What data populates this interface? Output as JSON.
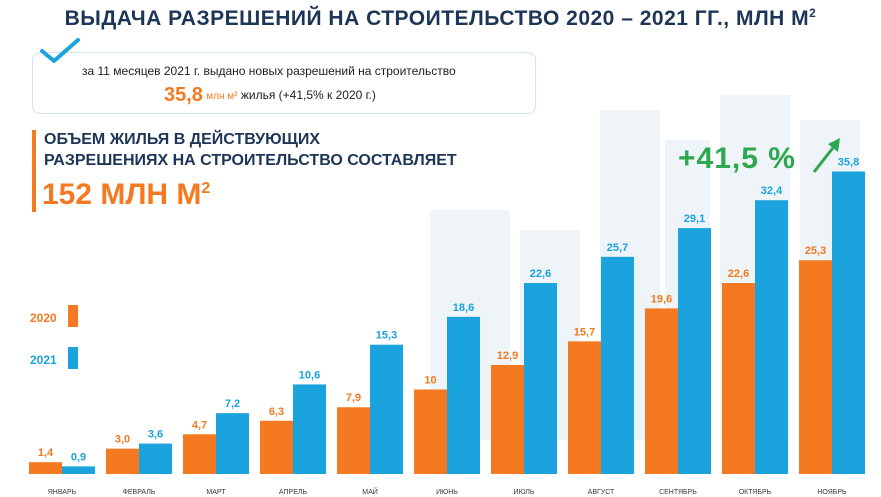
{
  "title": "ВЫДАЧА РАЗРЕШЕНИЙ НА СТРОИТЕЛЬСТВО 2020 – 2021 ГГ., МЛН М",
  "title_sup": "2",
  "info": {
    "line1": "за 11 месяцев 2021 г. выдано новых разрешений на строительство",
    "value": "35,8",
    "unit": "млн м²",
    "line2_rest": "жилья (+41,5% к 2020 г.)"
  },
  "subtitle_line1": "ОБЪЕМ ЖИЛЬЯ В ДЕЙСТВУЮЩИХ",
  "subtitle_line2": "РАЗРЕШЕНИЯХ НА СТРОИТЕЛЬСТВО СОСТАВЛЯЕТ",
  "volume": "152 МЛН М",
  "volume_sup": "2",
  "growth_label": "+41,5 %",
  "colors": {
    "orange": "#f47920",
    "blue": "#1aa3dc",
    "navy": "#1d3557",
    "green": "#2da84f"
  },
  "icons": [
    "check-icon",
    "growth-arrow-icon"
  ],
  "chart_data": {
    "type": "bar",
    "categories": [
      "ЯНВАРЬ",
      "ФЕВРАЛЬ",
      "МАРТ",
      "АПРЕЛЬ",
      "МАЙ",
      "ИЮНЬ",
      "ИЮЛЬ",
      "АВГУСТ",
      "СЕНТЯБРЬ",
      "ОКТЯБРЬ",
      "НОЯБРЬ"
    ],
    "series": [
      {
        "name": "2020",
        "values": [
          1.4,
          3.0,
          4.7,
          6.3,
          7.9,
          10,
          12.9,
          15.7,
          19.6,
          22.6,
          25.3
        ],
        "labels": [
          "1,4",
          "3,0",
          "4,7",
          "6,3",
          "7,9",
          "10",
          "12,9",
          "15,7",
          "19,6",
          "22,6",
          "25,3"
        ]
      },
      {
        "name": "2021",
        "values": [
          0.9,
          3.6,
          7.2,
          10.6,
          15.3,
          18.6,
          22.6,
          25.7,
          29.1,
          32.4,
          35.8
        ],
        "labels": [
          "0,9",
          "3,6",
          "7,2",
          "10,6",
          "15,3",
          "18,6",
          "22,6",
          "25,7",
          "29,1",
          "32,4",
          "35,8"
        ]
      }
    ],
    "ylim": [
      0,
      36
    ],
    "legend_position": "left",
    "grid": false
  }
}
